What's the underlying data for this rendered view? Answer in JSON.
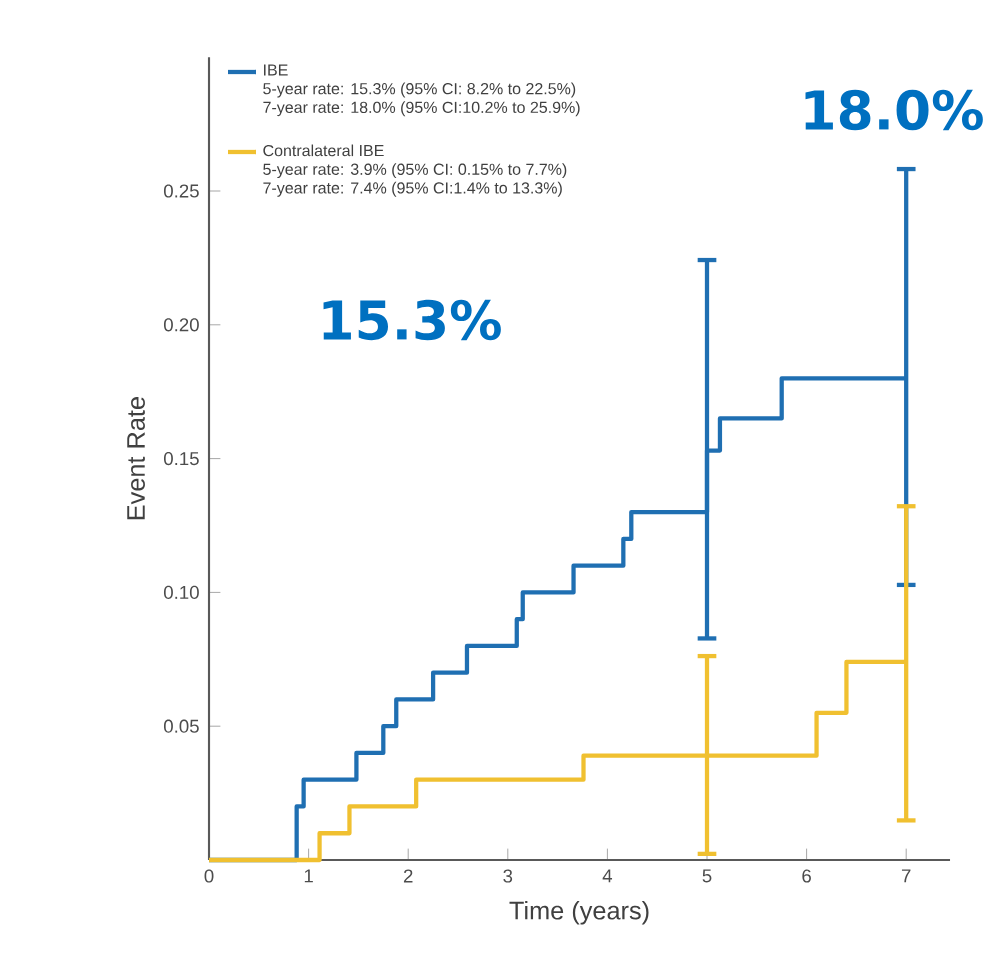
{
  "chart_data": {
    "type": "step",
    "xlabel": "Time (years)",
    "ylabel": "Event Rate",
    "xlim": [
      0,
      7.44
    ],
    "ylim": [
      0,
      0.3
    ],
    "xticks": [
      0,
      1,
      2,
      3,
      4,
      5,
      6,
      7
    ],
    "yticks": [
      {
        "value": 0,
        "label": null
      },
      0.05,
      {
        "value": 0.1,
        "label": "0.10"
      },
      0.15,
      {
        "value": 0.2,
        "label": "0.20"
      },
      0.25
    ],
    "legend": "top left",
    "series": [
      {
        "name": "IBE",
        "color": "#1f6fb2",
        "x": [
          0,
          0.88,
          0.95,
          1.48,
          1.75,
          1.88,
          2.25,
          2.59,
          3.09,
          3.15,
          3.66,
          4.16,
          4.24,
          5,
          5.13,
          5.75,
          7
        ],
        "values": [
          0,
          0.02,
          0.03,
          0.04,
          0.05,
          0.06,
          0.07,
          0.08,
          0.09,
          0.1,
          0.11,
          0.12,
          0.13,
          0.153,
          0.165,
          0.18,
          0.18
        ],
        "errors": [
          null,
          null,
          null,
          null,
          null,
          null,
          null,
          null,
          null,
          null,
          null,
          null,
          null,
          [
            0.082,
            0.225
          ],
          null,
          null,
          [
            0.102,
            0.259
          ]
        ]
      },
      {
        "name": "Contralateral IBE",
        "color": "#f0c030",
        "x": [
          0,
          1.11,
          1.41,
          2.08,
          3.76,
          5,
          6.1,
          6.4,
          7
        ],
        "values": [
          0,
          0.01,
          0.02,
          0.03,
          0.039,
          0.039,
          0.055,
          0.074,
          0.074
        ],
        "errors": [
          null,
          null,
          null,
          null,
          null,
          [
            0.0015,
            0.077
          ],
          null,
          null,
          [
            0.014,
            0.133
          ]
        ]
      }
    ],
    "annotations": [
      "15.3%",
      "18.0%",
      "5-year rate: 15.3% (95% CI: 8.2% to 22.5%)",
      "7-year rate: 18.0% (95% CI:10.2% to 25.9%)",
      "5-year rate: 3.9% (95% CI: 0.15% to 7.7%)",
      "7-year rate: 7.4% (95% CI:1.4% to 13.3%)"
    ]
  }
}
